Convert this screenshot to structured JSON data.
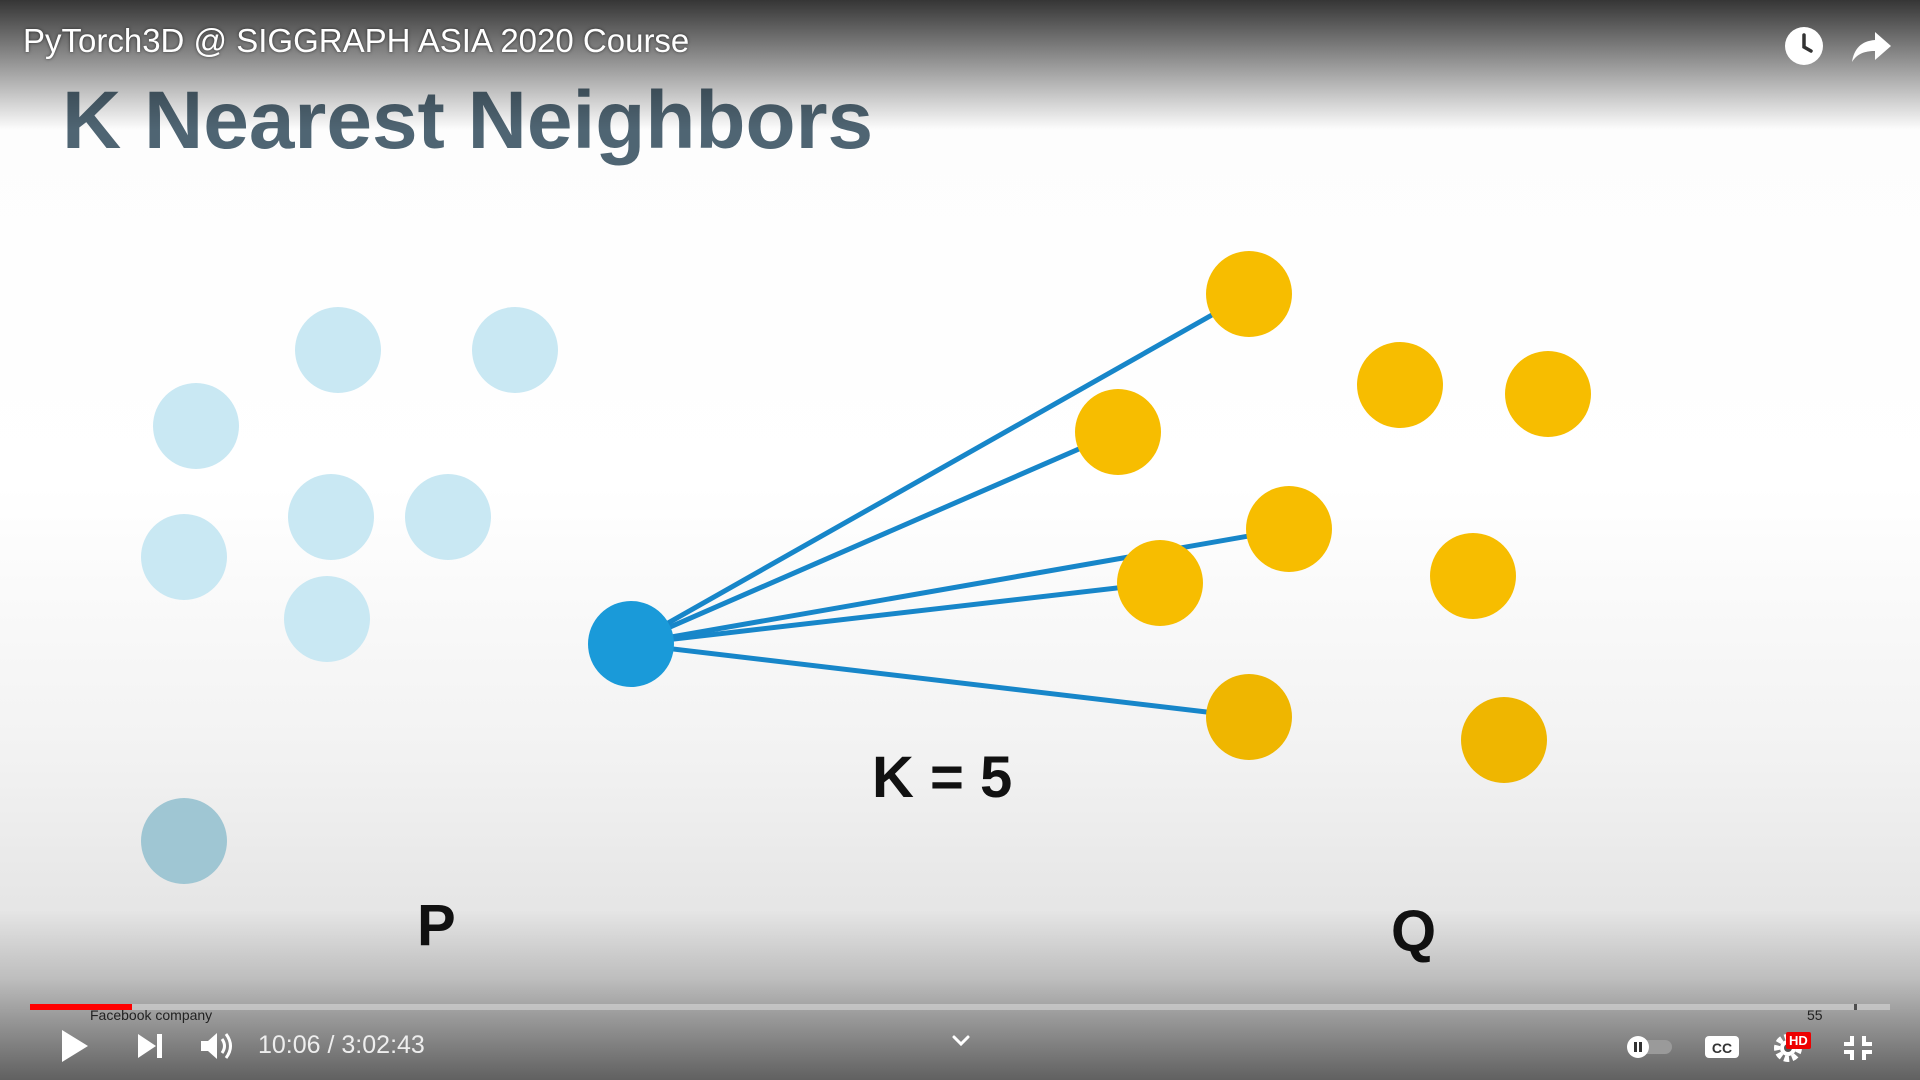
{
  "video": {
    "title": "PyTorch3D @ SIGGRAPH ASIA 2020 Course"
  },
  "slide": {
    "heading": "K Nearest Neighbors",
    "k_label": "K = 5",
    "set_p_label": "P",
    "set_q_label": "Q",
    "footer_text": "Facebook company",
    "corner_number": "55",
    "colors": {
      "p_point": "#c9e8f3",
      "p_point_faded": "#9fc6d3",
      "query_point": "#1a9ad9",
      "q_point": "#f7bd00",
      "edge": "#1786c9",
      "heading": "#4f6573"
    }
  },
  "controls": {
    "play_icon": "play-icon",
    "next_icon": "next-icon",
    "volume_icon": "volume-icon",
    "current_time": "10:06",
    "duration": "3:02:43",
    "time_separator": " / ",
    "autoplay_icon": "autoplay-toggle-icon",
    "captions_icon": "cc-icon",
    "settings_icon": "gear-icon",
    "hd_badge": "HD",
    "exit_fullscreen_icon": "exit-fullscreen-icon",
    "watch_later_icon": "clock-icon",
    "share_icon": "share-icon",
    "expand_icon": "chevron-down-icon",
    "progress_fraction": 0.055,
    "accent_color": "#ff0000"
  }
}
